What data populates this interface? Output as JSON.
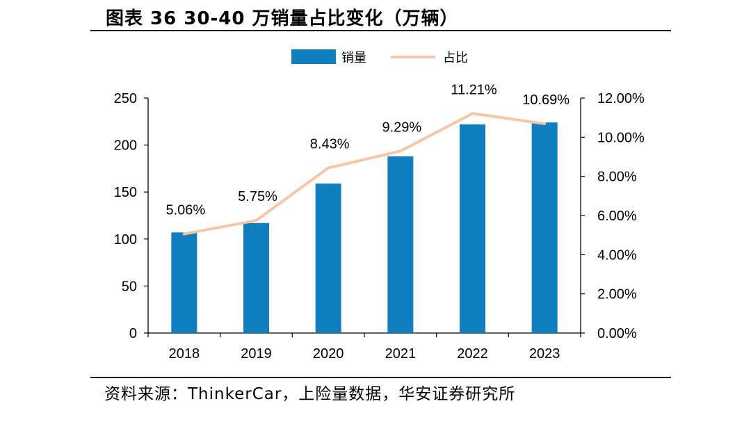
{
  "header": {
    "title": "图表 36 30-40 万销量占比变化（万辆）"
  },
  "footer": {
    "source": "资料来源：ThinkerCar，上险量数据，华安证券研究所"
  },
  "colors": {
    "bar": "#0f7fc0",
    "line": "#f7c6a6",
    "axis": "#000000"
  },
  "chart_data": {
    "type": "bar",
    "categories": [
      "2018",
      "2019",
      "2020",
      "2021",
      "2022",
      "2023"
    ],
    "series": [
      {
        "name": "销量",
        "type": "bar",
        "axis": "left",
        "values": [
          107,
          117,
          159,
          188,
          222,
          224
        ]
      },
      {
        "name": "占比",
        "type": "line",
        "axis": "right",
        "values": [
          5.06,
          5.75,
          8.43,
          9.29,
          11.21,
          10.69
        ],
        "labels": [
          "5.06%",
          "5.75%",
          "8.43%",
          "9.29%",
          "11.21%",
          "10.69%"
        ]
      }
    ],
    "y_left": {
      "min": 0,
      "max": 250,
      "ticks": [
        "0",
        "50",
        "100",
        "150",
        "200",
        "250"
      ]
    },
    "y_right": {
      "min": 0,
      "max": 12,
      "ticks": [
        "0.00%",
        "2.00%",
        "4.00%",
        "6.00%",
        "8.00%",
        "10.00%",
        "12.00%"
      ]
    },
    "legend": {
      "position": "top",
      "items": [
        "销量",
        "占比"
      ]
    },
    "grid": false
  }
}
